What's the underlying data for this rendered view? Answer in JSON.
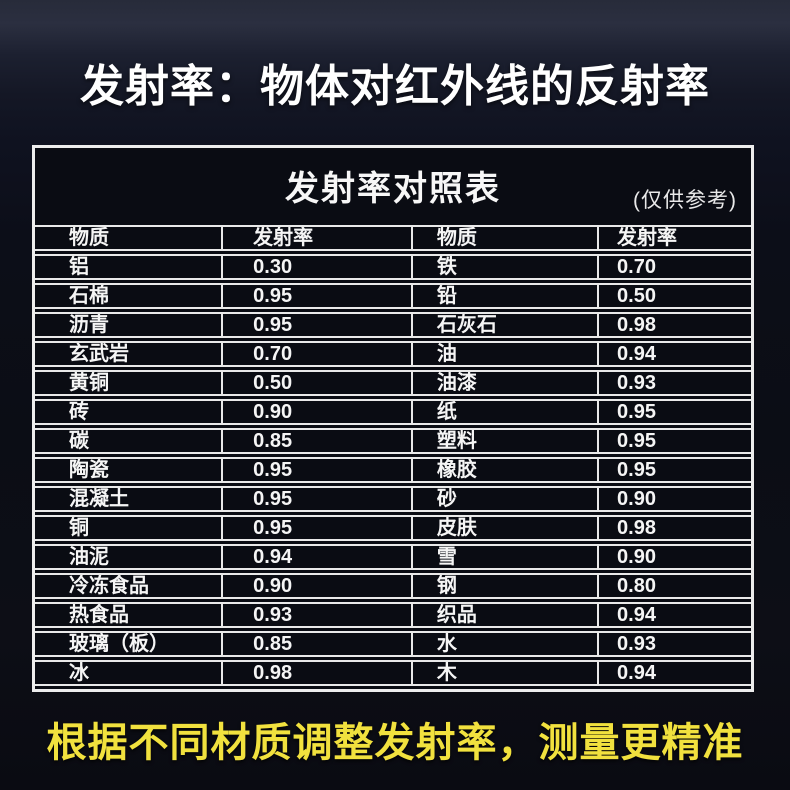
{
  "page": {
    "main_title": "发射率：物体对红外线的反射率",
    "bottom_note": "根据不同材质调整发射率，测量更精准"
  },
  "chart_data": {
    "type": "table",
    "title": "发射率对照表",
    "note": "(仅供参考)",
    "columns": [
      "物质",
      "发射率",
      "物质",
      "发射率"
    ],
    "rows": [
      [
        "铝",
        "0.30",
        "铁",
        "0.70"
      ],
      [
        "石棉",
        "0.95",
        "铅",
        "0.50"
      ],
      [
        "沥青",
        "0.95",
        "石灰石",
        "0.98"
      ],
      [
        "玄武岩",
        "0.70",
        "油",
        "0.94"
      ],
      [
        "黄铜",
        "0.50",
        "油漆",
        "0.93"
      ],
      [
        "砖",
        "0.90",
        "纸",
        "0.95"
      ],
      [
        "碳",
        "0.85",
        "塑料",
        "0.95"
      ],
      [
        "陶瓷",
        "0.95",
        "橡胶",
        "0.95"
      ],
      [
        "混凝土",
        "0.95",
        "砂",
        "0.90"
      ],
      [
        "铜",
        "0.95",
        "皮肤",
        "0.98"
      ],
      [
        "油泥",
        "0.94",
        "雪",
        "0.90"
      ],
      [
        "冷冻食品",
        "0.90",
        "钢",
        "0.80"
      ],
      [
        "热食品",
        "0.93",
        "织品",
        "0.94"
      ],
      [
        "玻璃（板）",
        "0.85",
        "水",
        "0.93"
      ],
      [
        "冰",
        "0.98",
        "木",
        "0.94"
      ]
    ]
  },
  "colors": {
    "accent_yellow": "#f1e13e",
    "table_border": "#e9e9e9",
    "text_white": "#f5f5f5",
    "background_dark": "#0c0e18"
  }
}
